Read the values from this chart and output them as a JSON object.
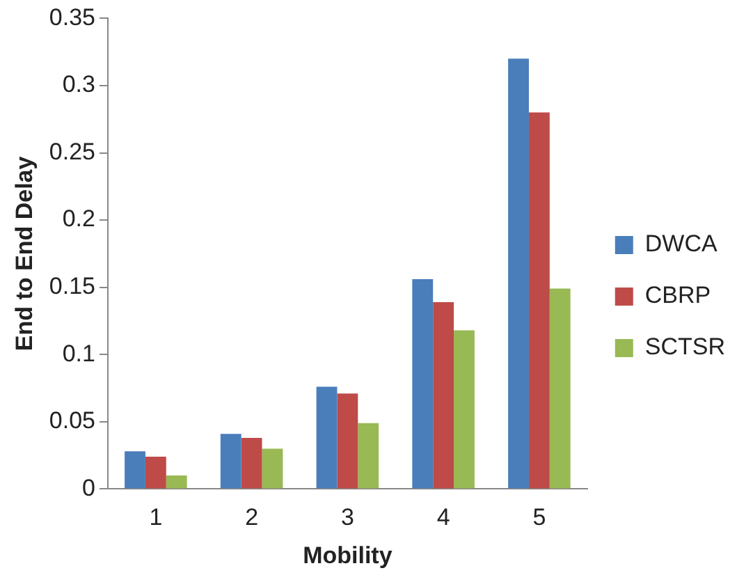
{
  "chart_data": {
    "type": "bar",
    "xlabel": "Mobility",
    "ylabel": "End to End Delay",
    "categories": [
      "1",
      "2",
      "3",
      "4",
      "5"
    ],
    "series": [
      {
        "name": "DWCA",
        "color": "#4a7ebb",
        "values": [
          0.028,
          0.041,
          0.076,
          0.156,
          0.32
        ]
      },
      {
        "name": "CBRP",
        "color": "#be4b48",
        "values": [
          0.024,
          0.038,
          0.071,
          0.139,
          0.28
        ]
      },
      {
        "name": "SCTSR",
        "color": "#98b954",
        "values": [
          0.01,
          0.03,
          0.049,
          0.118,
          0.149
        ]
      }
    ],
    "ylim": [
      0,
      0.35
    ],
    "yticks": [
      0,
      0.05,
      0.1,
      0.15,
      0.2,
      0.25,
      0.3,
      0.35
    ],
    "grid": false,
    "legend": "right"
  }
}
